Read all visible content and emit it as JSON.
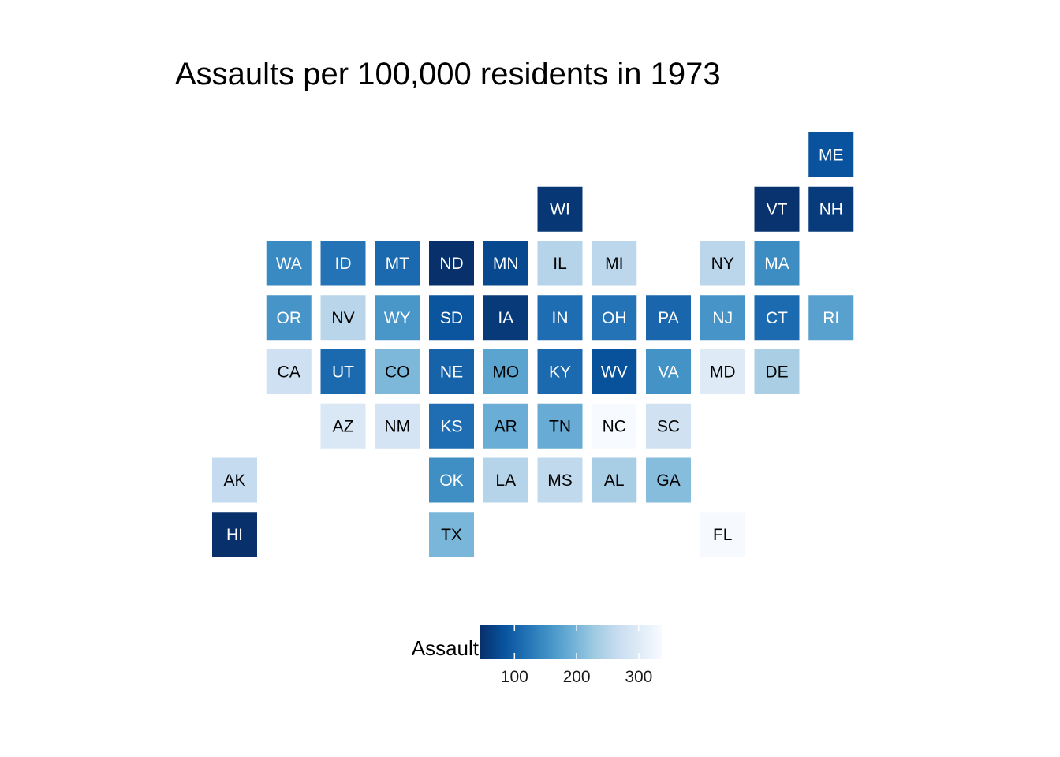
{
  "chart_data": {
    "type": "heatmap",
    "title": "Assaults per 100,000 residents in 1973",
    "legend": {
      "title": "Assault",
      "position": "bottom",
      "range": [
        45,
        337
      ],
      "ticks": [
        100,
        200,
        300
      ],
      "color_low": "#08306b",
      "color_high": "#f7fbff",
      "palette": [
        "#08306b",
        "#08519c",
        "#2171b5",
        "#4292c6",
        "#6baed6",
        "#9ecae1",
        "#c6dbef",
        "#deebf7",
        "#f7fbff"
      ]
    },
    "grid": false,
    "tiles": [
      {
        "state": "ME",
        "col": 11,
        "row": 0,
        "value": 83
      },
      {
        "state": "WI",
        "col": 6,
        "row": 1,
        "value": 53
      },
      {
        "state": "VT",
        "col": 10,
        "row": 1,
        "value": 48
      },
      {
        "state": "NH",
        "col": 11,
        "row": 1,
        "value": 57
      },
      {
        "state": "WA",
        "col": 1,
        "row": 2,
        "value": 145
      },
      {
        "state": "ID",
        "col": 2,
        "row": 2,
        "value": 120
      },
      {
        "state": "MT",
        "col": 3,
        "row": 2,
        "value": 109
      },
      {
        "state": "ND",
        "col": 4,
        "row": 2,
        "value": 45
      },
      {
        "state": "MN",
        "col": 5,
        "row": 2,
        "value": 72
      },
      {
        "state": "IL",
        "col": 6,
        "row": 2,
        "value": 249
      },
      {
        "state": "MI",
        "col": 7,
        "row": 2,
        "value": 255
      },
      {
        "state": "NY",
        "col": 9,
        "row": 2,
        "value": 254
      },
      {
        "state": "MA",
        "col": 10,
        "row": 2,
        "value": 149
      },
      {
        "state": "OR",
        "col": 1,
        "row": 3,
        "value": 159
      },
      {
        "state": "NV",
        "col": 2,
        "row": 3,
        "value": 252
      },
      {
        "state": "WY",
        "col": 3,
        "row": 3,
        "value": 161
      },
      {
        "state": "SD",
        "col": 4,
        "row": 3,
        "value": 86
      },
      {
        "state": "IA",
        "col": 5,
        "row": 3,
        "value": 56
      },
      {
        "state": "IN",
        "col": 6,
        "row": 3,
        "value": 113
      },
      {
        "state": "OH",
        "col": 7,
        "row": 3,
        "value": 120
      },
      {
        "state": "PA",
        "col": 8,
        "row": 3,
        "value": 106
      },
      {
        "state": "NJ",
        "col": 9,
        "row": 3,
        "value": 159
      },
      {
        "state": "CT",
        "col": 10,
        "row": 3,
        "value": 110
      },
      {
        "state": "RI",
        "col": 11,
        "row": 3,
        "value": 174
      },
      {
        "state": "CA",
        "col": 1,
        "row": 4,
        "value": 276
      },
      {
        "state": "UT",
        "col": 2,
        "row": 4,
        "value": 109
      },
      {
        "state": "CO",
        "col": 3,
        "row": 4,
        "value": 204
      },
      {
        "state": "NE",
        "col": 4,
        "row": 4,
        "value": 102
      },
      {
        "state": "MO",
        "col": 5,
        "row": 4,
        "value": 178
      },
      {
        "state": "KY",
        "col": 6,
        "row": 4,
        "value": 109
      },
      {
        "state": "WV",
        "col": 7,
        "row": 4,
        "value": 81
      },
      {
        "state": "VA",
        "col": 8,
        "row": 4,
        "value": 156
      },
      {
        "state": "MD",
        "col": 9,
        "row": 4,
        "value": 300
      },
      {
        "state": "DE",
        "col": 10,
        "row": 4,
        "value": 238
      },
      {
        "state": "AZ",
        "col": 2,
        "row": 5,
        "value": 294
      },
      {
        "state": "NM",
        "col": 3,
        "row": 5,
        "value": 285
      },
      {
        "state": "KS",
        "col": 4,
        "row": 5,
        "value": 115
      },
      {
        "state": "AR",
        "col": 5,
        "row": 5,
        "value": 190
      },
      {
        "state": "TN",
        "col": 6,
        "row": 5,
        "value": 188
      },
      {
        "state": "NC",
        "col": 7,
        "row": 5,
        "value": 337
      },
      {
        "state": "SC",
        "col": 8,
        "row": 5,
        "value": 279
      },
      {
        "state": "AK",
        "col": 0,
        "row": 6,
        "value": 263
      },
      {
        "state": "OK",
        "col": 4,
        "row": 6,
        "value": 151
      },
      {
        "state": "LA",
        "col": 5,
        "row": 6,
        "value": 249
      },
      {
        "state": "MS",
        "col": 6,
        "row": 6,
        "value": 259
      },
      {
        "state": "AL",
        "col": 7,
        "row": 6,
        "value": 236
      },
      {
        "state": "GA",
        "col": 8,
        "row": 6,
        "value": 211
      },
      {
        "state": "HI",
        "col": 0,
        "row": 7,
        "value": 46
      },
      {
        "state": "TX",
        "col": 4,
        "row": 7,
        "value": 201
      },
      {
        "state": "FL",
        "col": 9,
        "row": 7,
        "value": 335
      }
    ]
  }
}
